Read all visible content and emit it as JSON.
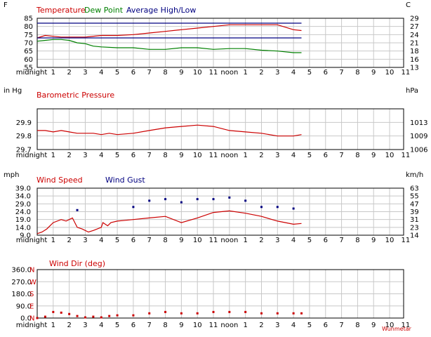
{
  "colors": {
    "red": "#cc0000",
    "green": "#008000",
    "navy": "#000080",
    "grid": "#c8c8c8",
    "frame": "#000000"
  },
  "x_ticks": [
    "midnight",
    "1",
    "2",
    "3",
    "4",
    "5",
    "6",
    "7",
    "8",
    "9",
    "10",
    "11",
    "noon",
    "1",
    "2",
    "3",
    "4",
    "5",
    "6",
    "7",
    "8",
    "9",
    "10",
    "11"
  ],
  "footer": "Wunmetar",
  "chart_data": [
    {
      "type": "line",
      "left_unit": "F",
      "right_unit": "C",
      "legend": [
        "Temperature",
        "Dew Point",
        "Average High/Low"
      ],
      "ylim": [
        55,
        85
      ],
      "left_ticks": [
        85,
        80,
        75,
        70,
        65,
        60,
        55
      ],
      "right_ticks": [
        29,
        27,
        24,
        21,
        18,
        16,
        13
      ],
      "grid": true,
      "series": [
        {
          "name": "Temperature",
          "color": "#cc0000",
          "x": [
            0,
            0.5,
            1,
            1.5,
            2,
            2.5,
            3,
            4,
            5,
            6,
            7,
            8,
            9,
            10,
            11,
            12,
            13,
            14,
            15,
            16,
            16.5
          ],
          "y": [
            73,
            74.5,
            74,
            73.5,
            73.5,
            73.5,
            73.5,
            74.5,
            74.5,
            75,
            76,
            77,
            78,
            79,
            80,
            81,
            81,
            81,
            81,
            78,
            77.5
          ]
        },
        {
          "name": "Dew Point",
          "color": "#008000",
          "x": [
            0,
            0.5,
            1,
            1.5,
            2,
            2.5,
            3,
            3.5,
            4,
            5,
            6,
            7,
            8,
            9,
            10,
            11,
            12,
            13,
            14,
            15,
            16,
            16.5
          ],
          "y": [
            71,
            71.5,
            72,
            72,
            71.5,
            70,
            69.5,
            68,
            67.5,
            67,
            67,
            66,
            66,
            67,
            67,
            66,
            66.5,
            66.5,
            65.5,
            65,
            64,
            64
          ]
        },
        {
          "name": "Average High",
          "color": "#000080",
          "x": [
            0,
            16.5
          ],
          "y": [
            82,
            82
          ]
        },
        {
          "name": "Average Low",
          "color": "#000080",
          "x": [
            0,
            16.5
          ],
          "y": [
            73,
            73
          ]
        }
      ]
    },
    {
      "type": "line",
      "left_unit": "in Hg",
      "right_unit": "hPa",
      "legend": [
        "Barometric Pressure"
      ],
      "ylim": [
        29.7,
        30.0
      ],
      "left_ticks": [
        29.9,
        29.8,
        29.7
      ],
      "right_ticks": [
        1013,
        1009,
        1006
      ],
      "grid": true,
      "series": [
        {
          "name": "Barometric Pressure",
          "color": "#cc0000",
          "x": [
            0,
            0.5,
            1,
            1.5,
            2,
            2.5,
            3,
            3.5,
            4,
            4.5,
            5,
            6,
            7,
            8,
            9,
            10,
            11,
            12,
            13,
            14,
            15,
            16,
            16.5
          ],
          "y": [
            29.84,
            29.84,
            29.83,
            29.84,
            29.83,
            29.82,
            29.82,
            29.82,
            29.81,
            29.82,
            29.81,
            29.82,
            29.84,
            29.86,
            29.87,
            29.88,
            29.87,
            29.84,
            29.83,
            29.82,
            29.8,
            29.8,
            29.81
          ]
        }
      ]
    },
    {
      "type": "line",
      "left_unit": "mph",
      "right_unit": "km/h",
      "legend": [
        "Wind Speed",
        "Wind Gust"
      ],
      "ylim": [
        9.0,
        39.0
      ],
      "left_ticks": [
        "39.0",
        "34.0",
        "29.0",
        "24.0",
        "19.0",
        "14.0",
        "9.0"
      ],
      "right_ticks": [
        63,
        55,
        47,
        39,
        31,
        23,
        14
      ],
      "grid": true,
      "series": [
        {
          "name": "Wind Speed",
          "color": "#cc0000",
          "x": [
            0,
            0.3,
            0.6,
            1,
            1.5,
            1.8,
            2.2,
            2.5,
            2.8,
            3.2,
            3.5,
            4,
            4.1,
            4.4,
            4.6,
            5,
            5.5,
            6,
            7,
            8,
            9,
            10,
            11,
            12,
            13,
            14,
            15,
            16,
            16.5
          ],
          "y": [
            10,
            11,
            13,
            17,
            19,
            18,
            20,
            14,
            13,
            11,
            12,
            14,
            17,
            15,
            17,
            18,
            18.5,
            19,
            20,
            21,
            17,
            20,
            23.5,
            24.5,
            23,
            21,
            18,
            16,
            16.5
          ]
        },
        {
          "name": "Wind Gust",
          "color": "#000080",
          "x": [
            2.5,
            6,
            7,
            8,
            9,
            10,
            11,
            12,
            13,
            14,
            15,
            16
          ],
          "y": [
            25,
            27,
            31,
            32,
            30,
            32,
            32,
            33,
            31,
            27,
            27,
            26
          ]
        }
      ]
    },
    {
      "type": "scatter",
      "left_unit": "",
      "right_unit": "",
      "legend": [
        "Wind Dir (deg)"
      ],
      "ylim": [
        0,
        360
      ],
      "left_ticks": [
        "360.0",
        "270.0",
        "180.0",
        "90.0",
        "0.0"
      ],
      "compass": [
        "N",
        "W",
        "S",
        "E",
        "N"
      ],
      "grid": true,
      "series": [
        {
          "name": "Wind Dir (deg)",
          "color": "#cc0000",
          "x": [
            0,
            0.5,
            1,
            1.5,
            2,
            2.5,
            3,
            3.5,
            4,
            4.5,
            5,
            6,
            7,
            8,
            9,
            10,
            11,
            12,
            13,
            14,
            15,
            16,
            16.5
          ],
          "y": [
            0,
            10,
            45,
            40,
            30,
            15,
            5,
            10,
            5,
            15,
            20,
            20,
            35,
            45,
            35,
            35,
            45,
            45,
            45,
            35,
            35,
            35,
            35
          ]
        }
      ]
    }
  ]
}
